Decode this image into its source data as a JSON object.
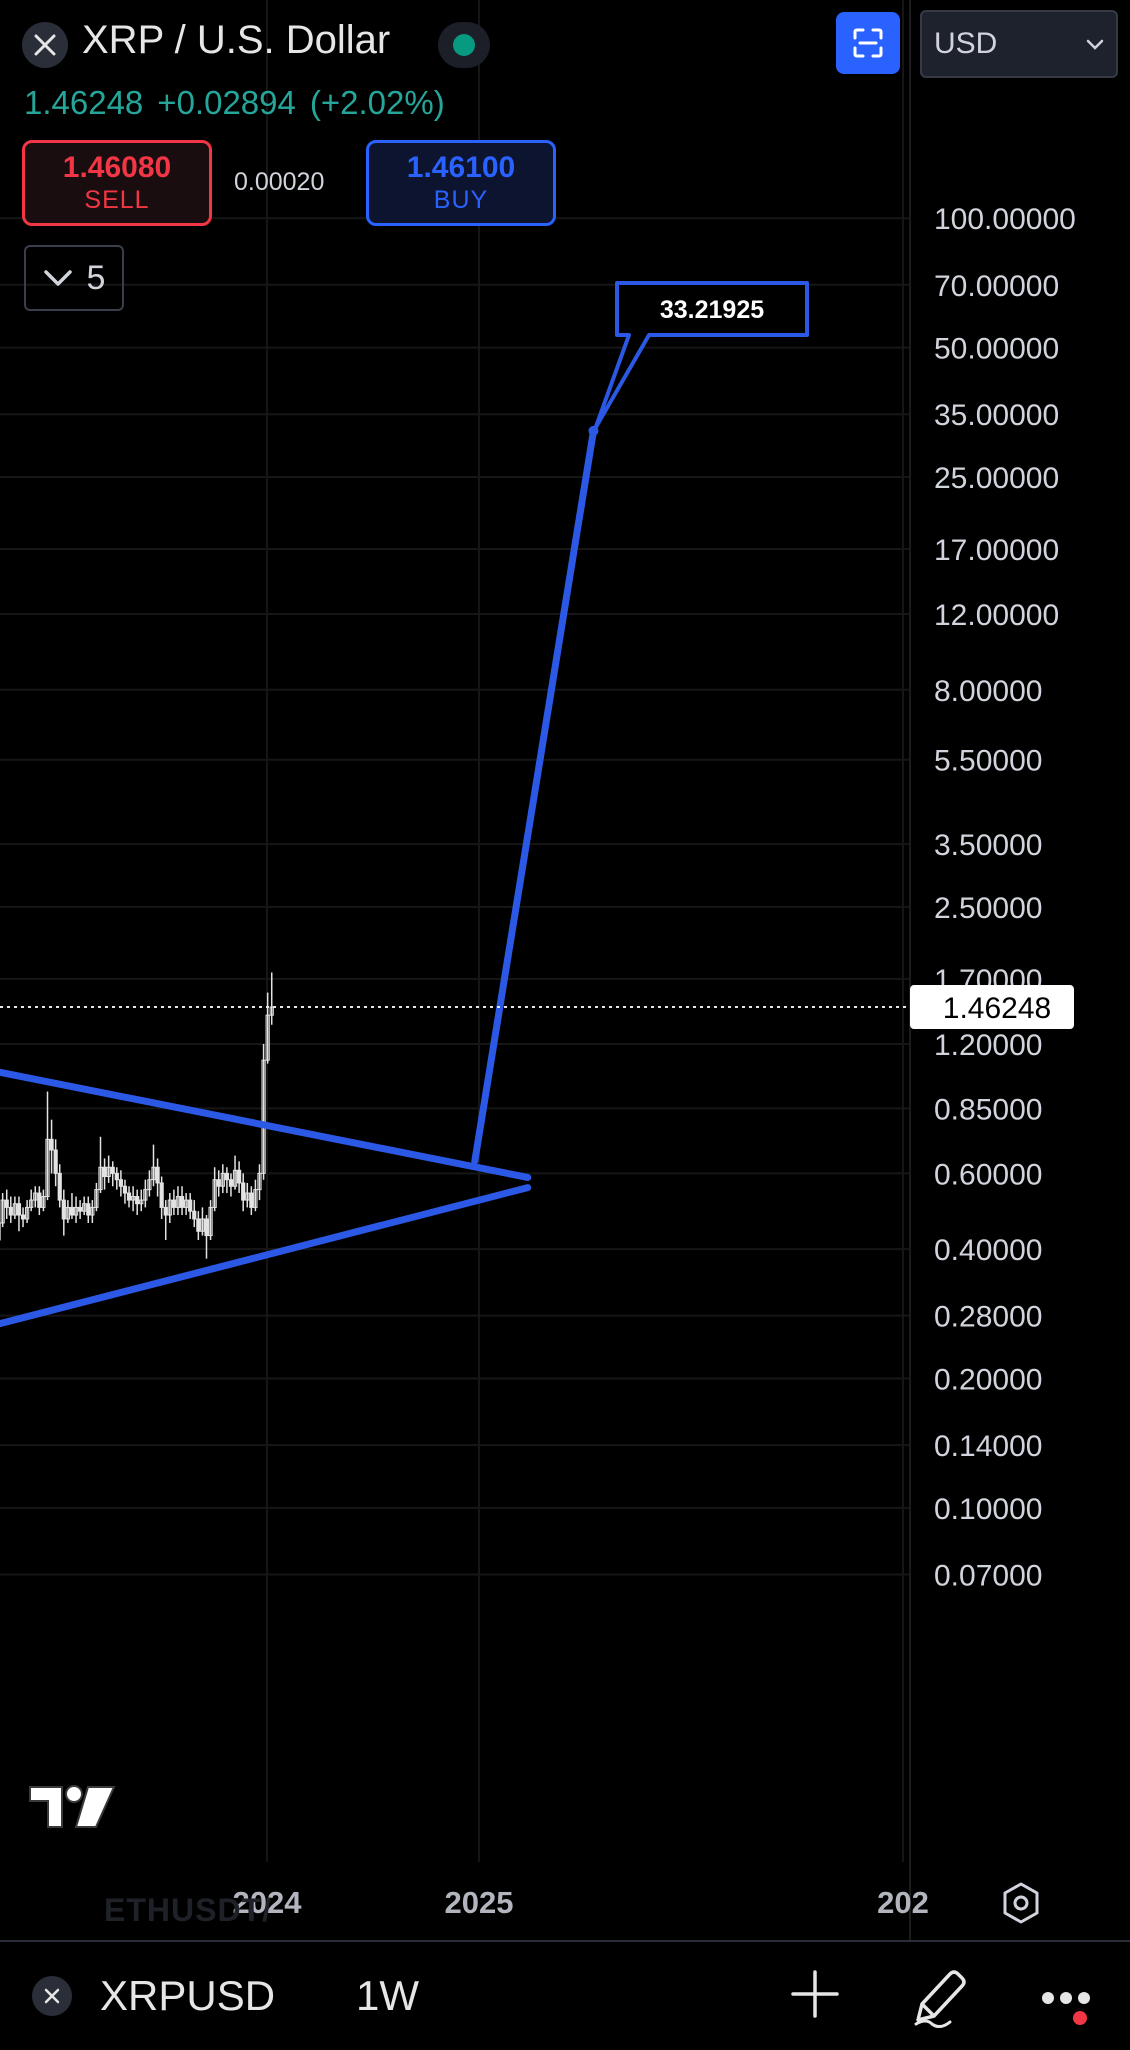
{
  "header": {
    "symbol_title": "XRP / U.S. Dollar",
    "last_price": "1.46248",
    "change": "+0.02894",
    "change_pct": "(+2.02%)",
    "currency": "USD"
  },
  "trade": {
    "sell_price": "1.46080",
    "sell_label": "SELL",
    "spread": "0.00020",
    "buy_price": "1.46100",
    "buy_label": "BUY"
  },
  "indicators_count": "5",
  "chart_data": {
    "type": "line",
    "y_scale": "log",
    "y_ticks": [
      "100.00000",
      "70.00000",
      "50.00000",
      "35.00000",
      "25.00000",
      "17.00000",
      "12.00000",
      "8.00000",
      "5.50000",
      "3.50000",
      "2.50000",
      "1.70000",
      "1.20000",
      "0.85000",
      "0.60000",
      "0.40000",
      "0.28000",
      "0.20000",
      "0.14000",
      "0.10000",
      "0.07000"
    ],
    "x_ticks": [
      "2024",
      "2025",
      "202"
    ],
    "last_price_label": "1.46248",
    "annotation_label": "33.21925",
    "lines": [
      {
        "name": "upper trendline",
        "from": [
          2022.66,
          1.05
        ],
        "to": [
          2025.23,
          0.587
        ]
      },
      {
        "name": "lower trendline",
        "from": [
          2022.66,
          0.262
        ],
        "to": [
          2025.23,
          0.556
        ]
      },
      {
        "name": "projection",
        "from": [
          2024.98,
          0.64
        ],
        "to": [
          2025.54,
          32.0
        ]
      }
    ],
    "candles": [
      [
        0.48,
        0.52,
        0.44,
        0.53
      ],
      [
        0.52,
        0.46,
        0.44,
        0.54
      ],
      [
        0.46,
        0.5,
        0.43,
        0.52
      ],
      [
        0.5,
        0.44,
        0.41,
        0.52
      ],
      [
        0.44,
        0.4,
        0.37,
        0.46
      ],
      [
        0.4,
        0.36,
        0.33,
        0.42
      ],
      [
        0.36,
        0.38,
        0.34,
        0.4
      ],
      [
        0.38,
        0.34,
        0.32,
        0.4
      ],
      [
        0.34,
        0.37,
        0.33,
        0.39
      ],
      [
        0.37,
        0.35,
        0.33,
        0.39
      ],
      [
        0.35,
        0.32,
        0.3,
        0.37
      ],
      [
        0.32,
        0.34,
        0.3,
        0.36
      ],
      [
        0.34,
        0.33,
        0.31,
        0.36
      ],
      [
        0.33,
        0.35,
        0.32,
        0.37
      ],
      [
        0.35,
        0.37,
        0.34,
        0.39
      ],
      [
        0.37,
        0.36,
        0.34,
        0.4
      ],
      [
        0.36,
        0.38,
        0.35,
        0.4
      ],
      [
        0.38,
        0.36,
        0.34,
        0.39
      ],
      [
        0.36,
        0.38,
        0.34,
        0.4
      ],
      [
        0.38,
        0.36,
        0.35,
        0.4
      ],
      [
        0.36,
        0.42,
        0.35,
        0.44
      ],
      [
        0.42,
        0.46,
        0.41,
        0.48
      ],
      [
        0.46,
        0.52,
        0.45,
        0.54
      ],
      [
        0.52,
        0.5,
        0.47,
        0.55
      ],
      [
        0.5,
        0.48,
        0.46,
        0.53
      ],
      [
        0.48,
        0.51,
        0.47,
        0.53
      ],
      [
        0.51,
        0.48,
        0.44,
        0.53
      ],
      [
        0.48,
        0.47,
        0.45,
        0.5
      ],
      [
        0.47,
        0.5,
        0.46,
        0.52
      ],
      [
        0.5,
        0.52,
        0.49,
        0.55
      ],
      [
        0.52,
        0.54,
        0.5,
        0.56
      ],
      [
        0.54,
        0.5,
        0.48,
        0.56
      ],
      [
        0.5,
        0.53,
        0.49,
        0.55
      ],
      [
        0.53,
        0.72,
        0.52,
        0.93
      ],
      [
        0.72,
        0.68,
        0.6,
        0.8
      ],
      [
        0.68,
        0.6,
        0.56,
        0.72
      ],
      [
        0.6,
        0.52,
        0.5,
        0.63
      ],
      [
        0.52,
        0.47,
        0.43,
        0.55
      ],
      [
        0.47,
        0.5,
        0.46,
        0.52
      ],
      [
        0.5,
        0.48,
        0.47,
        0.54
      ],
      [
        0.48,
        0.5,
        0.46,
        0.53
      ],
      [
        0.5,
        0.49,
        0.47,
        0.52
      ],
      [
        0.49,
        0.51,
        0.48,
        0.53
      ],
      [
        0.51,
        0.48,
        0.46,
        0.53
      ],
      [
        0.48,
        0.5,
        0.46,
        0.52
      ],
      [
        0.5,
        0.55,
        0.49,
        0.57
      ],
      [
        0.55,
        0.62,
        0.54,
        0.73
      ],
      [
        0.62,
        0.59,
        0.55,
        0.65
      ],
      [
        0.59,
        0.62,
        0.57,
        0.66
      ],
      [
        0.62,
        0.6,
        0.56,
        0.64
      ],
      [
        0.6,
        0.58,
        0.55,
        0.62
      ],
      [
        0.58,
        0.56,
        0.53,
        0.61
      ],
      [
        0.56,
        0.54,
        0.51,
        0.58
      ],
      [
        0.54,
        0.52,
        0.5,
        0.56
      ],
      [
        0.52,
        0.53,
        0.49,
        0.56
      ],
      [
        0.53,
        0.51,
        0.48,
        0.55
      ],
      [
        0.51,
        0.52,
        0.49,
        0.55
      ],
      [
        0.52,
        0.55,
        0.5,
        0.58
      ],
      [
        0.55,
        0.58,
        0.53,
        0.61
      ],
      [
        0.58,
        0.62,
        0.56,
        0.7
      ],
      [
        0.62,
        0.57,
        0.53,
        0.65
      ],
      [
        0.57,
        0.5,
        0.47,
        0.59
      ],
      [
        0.5,
        0.48,
        0.42,
        0.52
      ],
      [
        0.48,
        0.52,
        0.46,
        0.54
      ],
      [
        0.52,
        0.5,
        0.48,
        0.55
      ],
      [
        0.5,
        0.53,
        0.48,
        0.56
      ],
      [
        0.53,
        0.5,
        0.48,
        0.56
      ],
      [
        0.5,
        0.52,
        0.48,
        0.54
      ],
      [
        0.52,
        0.49,
        0.47,
        0.54
      ],
      [
        0.49,
        0.47,
        0.45,
        0.52
      ],
      [
        0.47,
        0.44,
        0.42,
        0.49
      ],
      [
        0.44,
        0.47,
        0.43,
        0.5
      ],
      [
        0.47,
        0.43,
        0.38,
        0.48
      ],
      [
        0.43,
        0.5,
        0.42,
        0.52
      ],
      [
        0.5,
        0.58,
        0.49,
        0.62
      ],
      [
        0.58,
        0.56,
        0.53,
        0.61
      ],
      [
        0.56,
        0.6,
        0.54,
        0.63
      ],
      [
        0.6,
        0.58,
        0.54,
        0.62
      ],
      [
        0.58,
        0.56,
        0.53,
        0.6
      ],
      [
        0.56,
        0.61,
        0.55,
        0.66
      ],
      [
        0.61,
        0.57,
        0.54,
        0.64
      ],
      [
        0.57,
        0.52,
        0.49,
        0.6
      ],
      [
        0.52,
        0.54,
        0.5,
        0.57
      ],
      [
        0.54,
        0.5,
        0.48,
        0.56
      ],
      [
        0.5,
        0.55,
        0.49,
        0.58
      ],
      [
        0.55,
        0.6,
        0.52,
        0.63
      ],
      [
        0.6,
        1.1,
        0.58,
        1.2
      ],
      [
        1.1,
        1.4,
        1.08,
        1.58
      ],
      [
        1.4,
        1.46248,
        1.33,
        1.76
      ]
    ]
  },
  "watermark_text": "ETHUSDT/",
  "bottom_bar": {
    "symbol": "XRPUSD",
    "interval": "1W"
  },
  "icons": [
    "close-icon",
    "status-dot-icon",
    "chevron-down-icon",
    "fullscreen-icon",
    "tradingview-logo",
    "hexagon-settings-icon",
    "plus-icon",
    "pencil-icon",
    "more-icon"
  ],
  "colors": {
    "trendline": "#2c58e6",
    "sell": "#f23645",
    "buy": "#2962ff",
    "change_positive": "#26a69a",
    "candle": "#e3e3e3"
  }
}
